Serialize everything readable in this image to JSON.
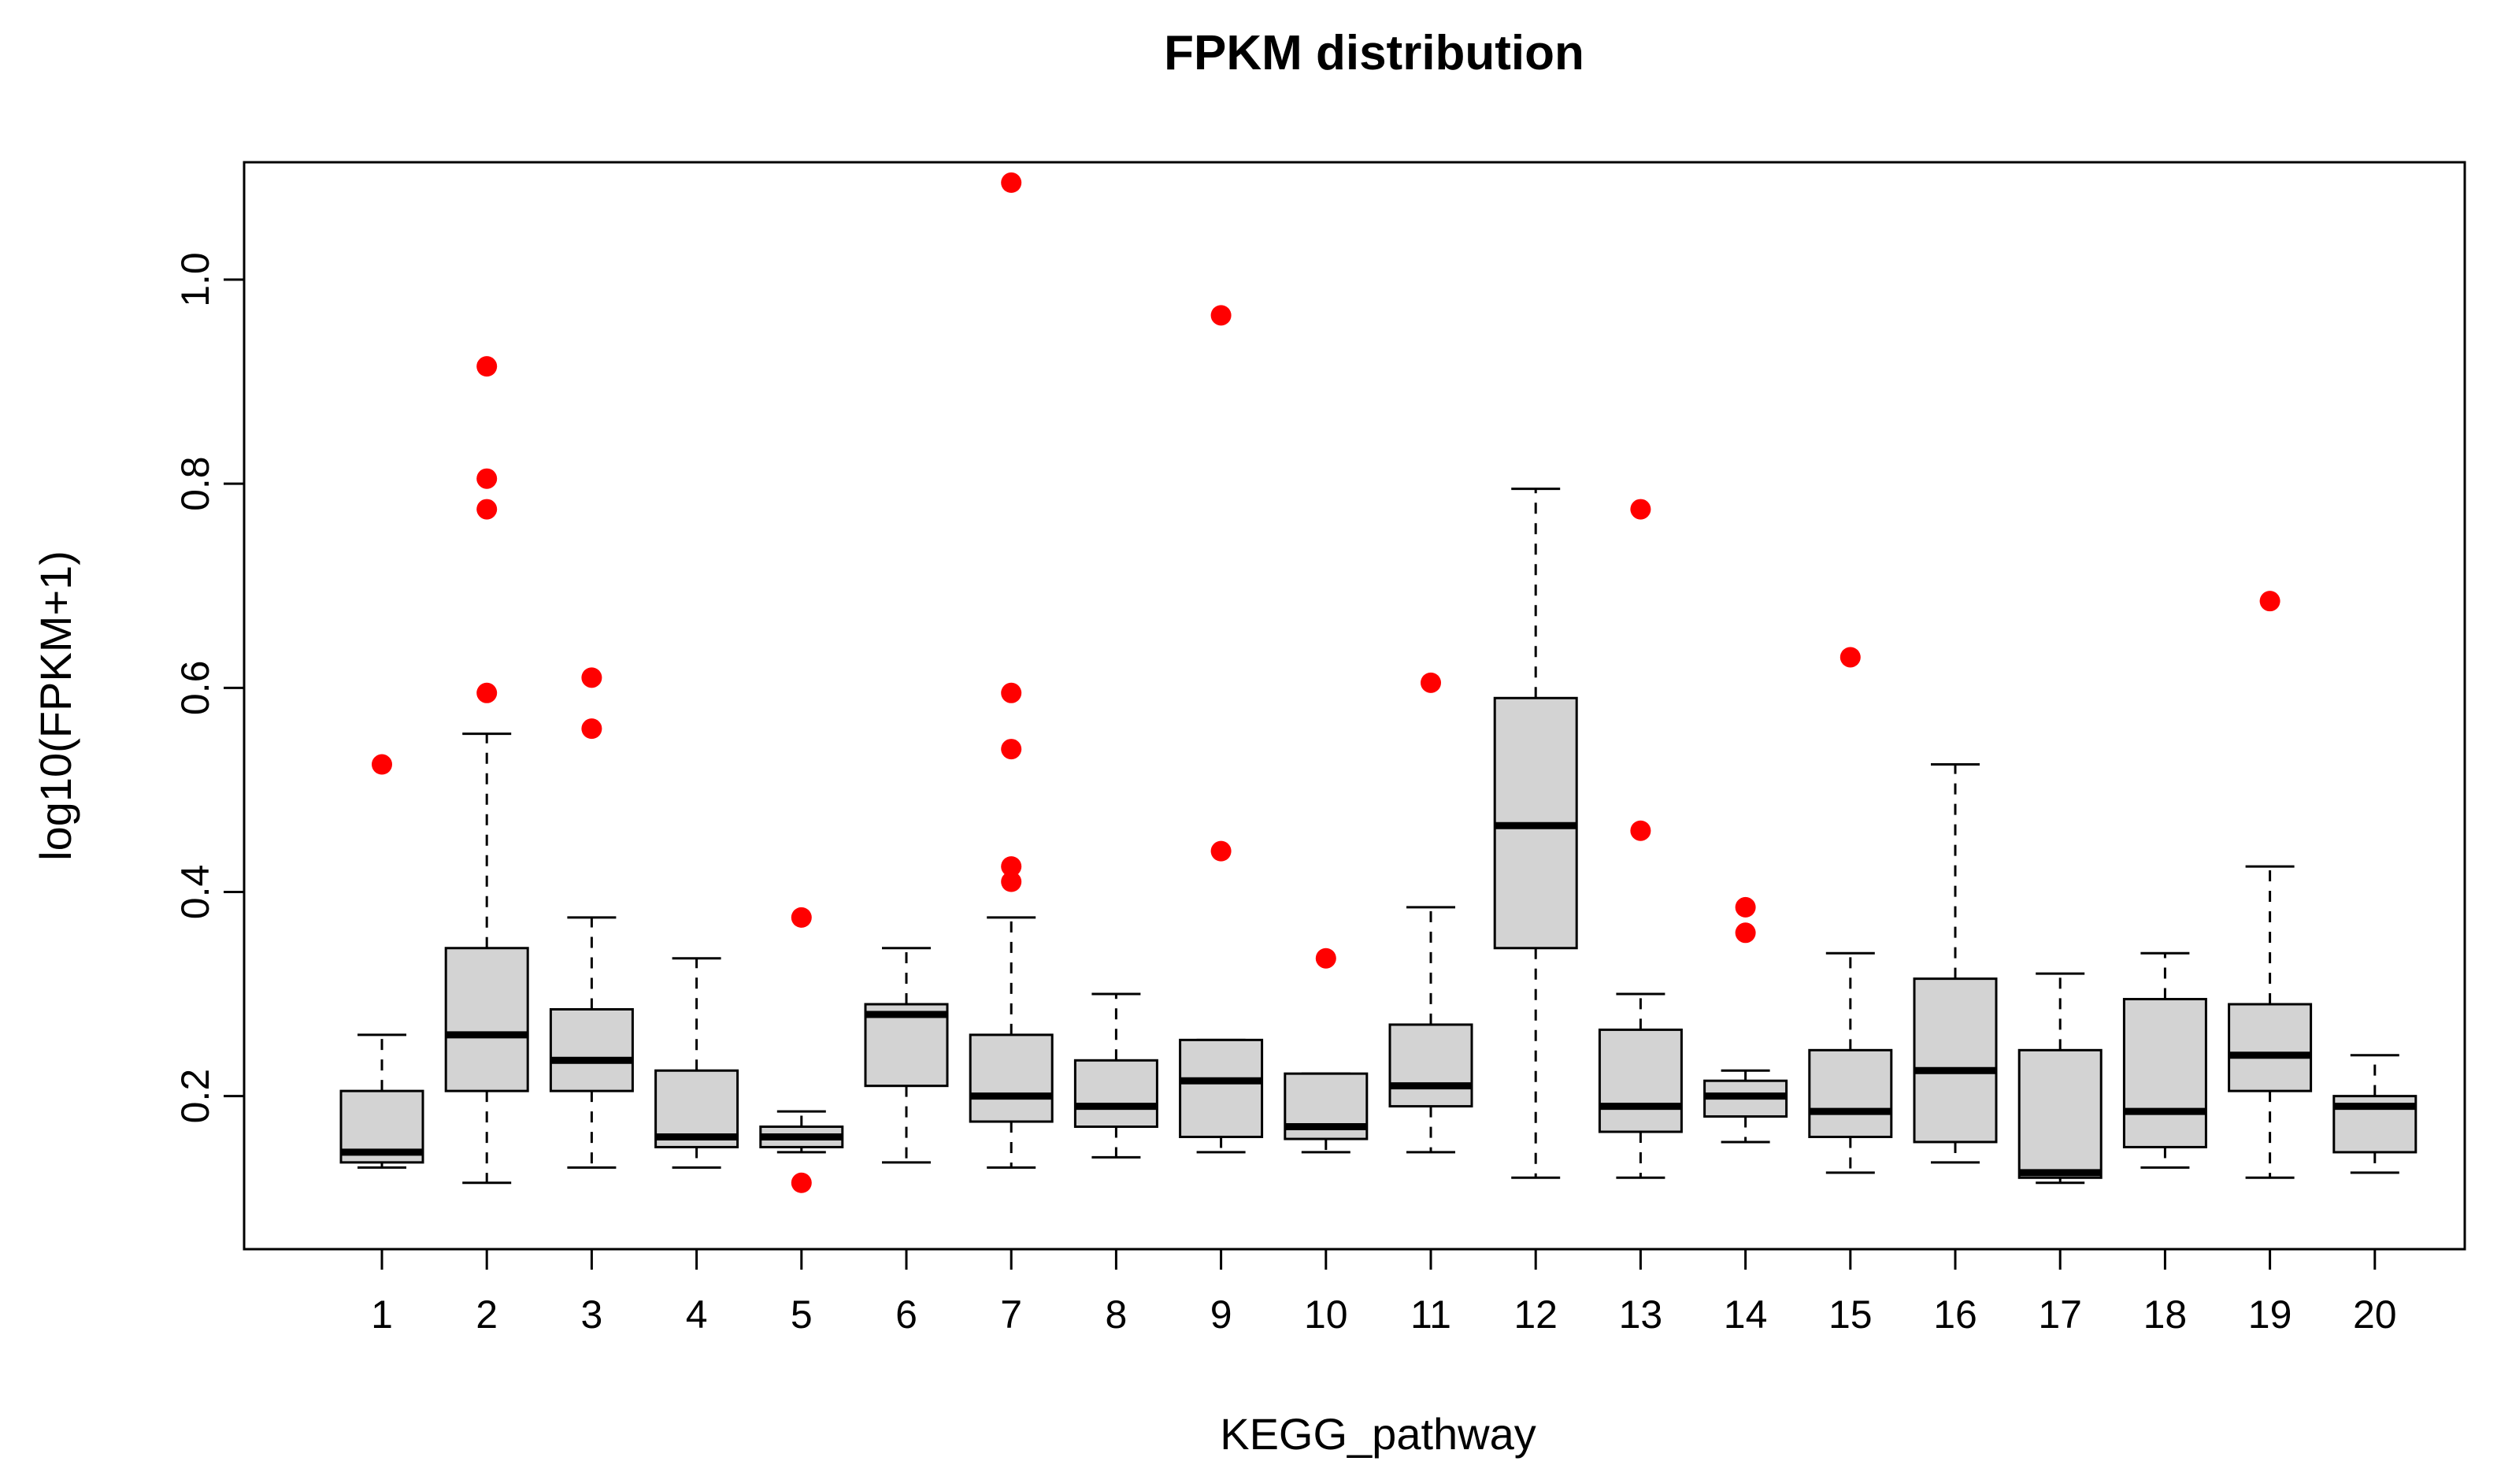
{
  "chart_data": {
    "type": "boxplot",
    "title": "FPKM distribution",
    "xlabel": "KEGG_pathway",
    "ylabel": "log10(FPKM+1)",
    "ylim": [
      0.05,
      1.115
    ],
    "yticks": [
      0.2,
      0.4,
      0.6,
      0.8,
      1.0
    ],
    "ytick_labels": [
      "0.2",
      "0.4",
      "0.6",
      "0.8",
      "1.0"
    ],
    "categories": [
      "1",
      "2",
      "3",
      "4",
      "5",
      "6",
      "7",
      "8",
      "9",
      "10",
      "11",
      "12",
      "13",
      "14",
      "15",
      "16",
      "17",
      "18",
      "19",
      "20"
    ],
    "grid": false,
    "legend": false,
    "box_fill": "#d3d3d3",
    "axis_color": "#000000",
    "outlier_color": "#ff0000",
    "boxes": [
      {
        "category": "1",
        "whisker_low": 0.13,
        "q1": 0.135,
        "median": 0.145,
        "q3": 0.205,
        "whisker_high": 0.26,
        "outliers": [
          0.525
        ]
      },
      {
        "category": "2",
        "whisker_low": 0.115,
        "q1": 0.205,
        "median": 0.26,
        "q3": 0.345,
        "whisker_high": 0.555,
        "outliers": [
          0.595,
          0.775,
          0.805,
          0.915
        ]
      },
      {
        "category": "3",
        "whisker_low": 0.13,
        "q1": 0.205,
        "median": 0.235,
        "q3": 0.285,
        "whisker_high": 0.375,
        "outliers": [
          0.56,
          0.61
        ]
      },
      {
        "category": "4",
        "whisker_low": 0.13,
        "q1": 0.15,
        "median": 0.16,
        "q3": 0.225,
        "whisker_high": 0.335,
        "outliers": []
      },
      {
        "category": "5",
        "whisker_low": 0.145,
        "q1": 0.15,
        "median": 0.16,
        "q3": 0.17,
        "whisker_high": 0.185,
        "outliers": [
          0.375,
          0.115
        ]
      },
      {
        "category": "6",
        "whisker_low": 0.135,
        "q1": 0.21,
        "median": 0.28,
        "q3": 0.29,
        "whisker_high": 0.345,
        "outliers": []
      },
      {
        "category": "7",
        "whisker_low": 0.13,
        "q1": 0.175,
        "median": 0.2,
        "q3": 0.26,
        "whisker_high": 0.375,
        "outliers": [
          0.41,
          0.425,
          0.54,
          0.595,
          1.095
        ]
      },
      {
        "category": "8",
        "whisker_low": 0.14,
        "q1": 0.17,
        "median": 0.19,
        "q3": 0.235,
        "whisker_high": 0.3,
        "outliers": []
      },
      {
        "category": "9",
        "whisker_low": 0.145,
        "q1": 0.16,
        "median": 0.215,
        "q3": 0.255,
        "whisker_high": 0.255,
        "outliers": [
          0.44,
          0.965
        ]
      },
      {
        "category": "10",
        "whisker_low": 0.145,
        "q1": 0.158,
        "median": 0.17,
        "q3": 0.222,
        "whisker_high": 0.222,
        "outliers": [
          0.335
        ]
      },
      {
        "category": "11",
        "whisker_low": 0.145,
        "q1": 0.19,
        "median": 0.21,
        "q3": 0.27,
        "whisker_high": 0.385,
        "outliers": [
          0.605
        ]
      },
      {
        "category": "12",
        "whisker_low": 0.12,
        "q1": 0.345,
        "median": 0.465,
        "q3": 0.59,
        "whisker_high": 0.795,
        "outliers": []
      },
      {
        "category": "13",
        "whisker_low": 0.12,
        "q1": 0.165,
        "median": 0.19,
        "q3": 0.265,
        "whisker_high": 0.3,
        "outliers": [
          0.46,
          0.775
        ]
      },
      {
        "category": "14",
        "whisker_low": 0.155,
        "q1": 0.18,
        "median": 0.2,
        "q3": 0.215,
        "whisker_high": 0.225,
        "outliers": [
          0.36,
          0.385
        ]
      },
      {
        "category": "15",
        "whisker_low": 0.125,
        "q1": 0.16,
        "median": 0.185,
        "q3": 0.245,
        "whisker_high": 0.34,
        "outliers": [
          0.63
        ]
      },
      {
        "category": "16",
        "whisker_low": 0.135,
        "q1": 0.155,
        "median": 0.225,
        "q3": 0.315,
        "whisker_high": 0.525,
        "outliers": []
      },
      {
        "category": "17",
        "whisker_low": 0.115,
        "q1": 0.12,
        "median": 0.125,
        "q3": 0.245,
        "whisker_high": 0.32,
        "outliers": []
      },
      {
        "category": "18",
        "whisker_low": 0.13,
        "q1": 0.15,
        "median": 0.185,
        "q3": 0.295,
        "whisker_high": 0.34,
        "outliers": []
      },
      {
        "category": "19",
        "whisker_low": 0.12,
        "q1": 0.205,
        "median": 0.24,
        "q3": 0.29,
        "whisker_high": 0.425,
        "outliers": [
          0.685
        ]
      },
      {
        "category": "20",
        "whisker_low": 0.125,
        "q1": 0.145,
        "median": 0.19,
        "q3": 0.2,
        "whisker_high": 0.24,
        "outliers": []
      }
    ]
  }
}
